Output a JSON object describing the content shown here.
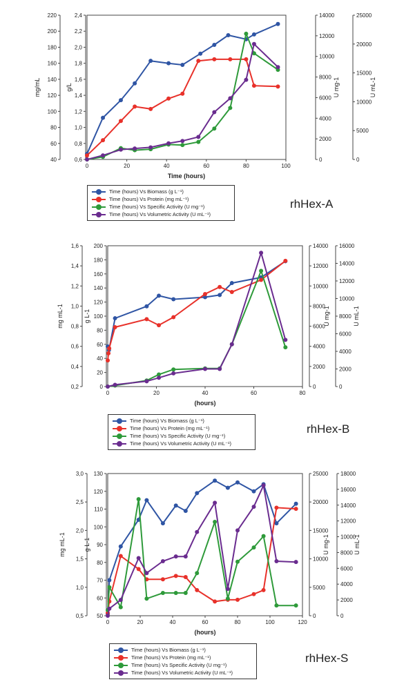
{
  "chart_data": [
    {
      "type": "line",
      "title": "",
      "panel_label": "rhHex-A",
      "xlabel": "Time (hours)",
      "xlim": [
        0,
        100
      ],
      "xticks": [
        "0",
        "20",
        "40",
        "60",
        "80",
        "100"
      ],
      "axes": [
        {
          "label": "mg/mL",
          "ticks": [
            "0,6",
            "0,8",
            "1,0",
            "1,2",
            "1,4",
            "1,6",
            "1,8",
            "2,0",
            "2,2",
            "2,4"
          ]
        },
        {
          "label": "g/L",
          "ticks": [
            "40",
            "60",
            "80",
            "100",
            "120",
            "140",
            "160",
            "180",
            "200",
            "220"
          ]
        },
        {
          "label": "U mg-1",
          "ticks": [
            "0",
            "2000",
            "4000",
            "6000",
            "8000",
            "10000",
            "12000",
            "14000"
          ]
        },
        {
          "label": "U mL-1",
          "ticks": [
            "0",
            "5000",
            "10000",
            "15000",
            "20000",
            "25000"
          ]
        }
      ],
      "series": [
        {
          "name": "Time (hours) Vs Biomass (g L⁻¹)",
          "color": "#2f55a4",
          "axis": 1,
          "x": [
            0,
            8,
            17,
            24,
            32,
            41,
            48,
            57,
            64,
            71,
            80,
            84,
            96
          ],
          "y": [
            47,
            92,
            114,
            135,
            163,
            160,
            158,
            172,
            183,
            195,
            190,
            196,
            209
          ]
        },
        {
          "name": "Time (hours) Vs Protein (mg mL⁻¹)",
          "color": "#e8312a",
          "axis": 0,
          "x": [
            0,
            8,
            17,
            24,
            32,
            41,
            48,
            56,
            64,
            72,
            80,
            84,
            96
          ],
          "y": [
            0.65,
            0.84,
            1.08,
            1.26,
            1.23,
            1.36,
            1.42,
            1.83,
            1.85,
            1.85,
            1.85,
            1.52,
            1.51
          ]
        },
        {
          "name": "Time (hours) Vs Specific Activity (U mg⁻¹)",
          "color": "#2e9a3a",
          "axis": 2,
          "x": [
            0,
            8,
            17,
            24,
            32,
            41,
            48,
            56,
            64,
            72,
            80,
            84,
            96
          ],
          "y": [
            0,
            250,
            1100,
            900,
            1000,
            1450,
            1400,
            1700,
            3000,
            5000,
            12200,
            10300,
            8700
          ]
        },
        {
          "name": "Time (hours) Vs Volumetric Activity  (U mL⁻¹)",
          "color": "#6a2c8f",
          "axis": 3,
          "x": [
            0,
            8,
            17,
            24,
            32,
            41,
            48,
            56,
            64,
            72,
            80,
            84,
            96
          ],
          "y": [
            0,
            700,
            1700,
            1900,
            2100,
            2800,
            3200,
            3900,
            8200,
            10600,
            13800,
            20000,
            16000
          ]
        }
      ],
      "legend": "below"
    },
    {
      "type": "line",
      "title": "",
      "panel_label": "rhHex-B",
      "xlabel": "(hours)",
      "xlim": [
        0,
        80
      ],
      "xticks": [
        "0",
        "20",
        "40",
        "60",
        "80"
      ],
      "axes": [
        {
          "label": "mg mL-1",
          "ticks": [
            "0,2",
            "0,4",
            "0,6",
            "0,8",
            "1,0",
            "1,2",
            "1,4",
            "1,6"
          ]
        },
        {
          "label": "g L-1",
          "ticks": [
            "0",
            "20",
            "40",
            "60",
            "80",
            "100",
            "120",
            "140",
            "160",
            "180",
            "200"
          ]
        },
        {
          "label": "U mg-1",
          "ticks": [
            "0",
            "2000",
            "4000",
            "6000",
            "8000",
            "10000",
            "12000",
            "14000"
          ]
        },
        {
          "label": "U mL-1",
          "ticks": [
            "0",
            "2000",
            "4000",
            "6000",
            "8000",
            "10000",
            "12000",
            "14000",
            "16000"
          ]
        }
      ],
      "series": [
        {
          "name": "Time (hours) Vs Biomass (g L⁻¹)",
          "color": "#2f55a4",
          "axis": 1,
          "x": [
            0,
            0.5,
            3,
            16,
            21,
            27,
            40,
            46,
            51,
            63,
            73
          ],
          "y": [
            57,
            52,
            97,
            114,
            129,
            124,
            127,
            130,
            147,
            155,
            178
          ]
        },
        {
          "name": "Time (hours) Vs Protein (mg mL⁻¹)",
          "color": "#e8312a",
          "axis": 0,
          "x": [
            0,
            0.3,
            0.6,
            3,
            16,
            21,
            27,
            40,
            46,
            51,
            63,
            73
          ],
          "y": [
            0.46,
            0.53,
            0.58,
            0.79,
            0.87,
            0.81,
            0.89,
            1.12,
            1.19,
            1.14,
            1.26,
            1.45
          ]
        },
        {
          "name": "Time (hours) Vs Specific Activity (U mg⁻¹)",
          "color": "#2e9a3a",
          "axis": 2,
          "x": [
            0,
            3,
            16,
            21,
            27,
            40,
            46,
            51,
            63,
            73
          ],
          "y": [
            0,
            100,
            600,
            1200,
            1700,
            1800,
            1800,
            4200,
            11500,
            3900
          ]
        },
        {
          "name": "Time (hours) Vs Volumetric Activity  (U mL⁻¹)",
          "color": "#6a2c8f",
          "axis": 3,
          "x": [
            0,
            3,
            16,
            21,
            27,
            40,
            46,
            51,
            63,
            73
          ],
          "y": [
            0,
            200,
            600,
            1000,
            1500,
            2000,
            2000,
            4800,
            15200,
            5300
          ]
        }
      ],
      "legend": "below"
    },
    {
      "type": "line",
      "title": "",
      "panel_label": "rhHex-S",
      "xlabel": "(hours)",
      "xlim": [
        0,
        120
      ],
      "xticks": [
        "0",
        "20",
        "40",
        "60",
        "80",
        "100",
        "120"
      ],
      "axes": [
        {
          "label": "mg mL-1",
          "ticks": [
            "0,5",
            "1,0",
            "1,5",
            "2,0",
            "2,5",
            "3,0"
          ]
        },
        {
          "label": "g L-1",
          "ticks": [
            "50",
            "60",
            "70",
            "80",
            "90",
            "100",
            "110",
            "120",
            "130"
          ]
        },
        {
          "label": "U mg-1",
          "ticks": [
            "0",
            "5000",
            "10000",
            "15000",
            "20000",
            "25000"
          ]
        },
        {
          "label": "U mL-1",
          "ticks": [
            "0",
            "2000",
            "4000",
            "6000",
            "8000",
            "10000",
            "12000",
            "14000",
            "16000",
            "18000"
          ]
        }
      ],
      "series": [
        {
          "name": "Time (hours) Vs Biomass (g L⁻¹)",
          "color": "#2f55a4",
          "axis": 1,
          "x": [
            0,
            1,
            8,
            19,
            24,
            34,
            42,
            48,
            55,
            66,
            74,
            80,
            90,
            96,
            104,
            116
          ],
          "y": [
            51,
            70,
            89,
            104,
            115,
            102,
            112,
            109,
            119,
            126,
            122,
            125,
            120,
            124,
            102,
            113
          ]
        },
        {
          "name": "Time (hours) Vs Protein (mg mL⁻¹)",
          "color": "#e8312a",
          "axis": 0,
          "x": [
            0,
            1,
            8,
            19,
            24,
            34,
            42,
            48,
            55,
            66,
            74,
            80,
            90,
            96,
            104,
            116
          ],
          "y": [
            0.55,
            0.75,
            1.55,
            1.32,
            1.14,
            1.14,
            1.2,
            1.18,
            0.95,
            0.75,
            0.78,
            0.78,
            0.88,
            0.95,
            2.4,
            2.38
          ]
        },
        {
          "name": "Time (hours) Vs Specific Activity (U mg⁻¹)",
          "color": "#2e9a3a",
          "axis": 2,
          "x": [
            0,
            1,
            8,
            19,
            24,
            34,
            42,
            48,
            55,
            66,
            74,
            80,
            90,
            96,
            104,
            116
          ],
          "y": [
            1000,
            5000,
            1500,
            20500,
            3000,
            4000,
            4000,
            4000,
            7500,
            16500,
            3000,
            9500,
            12000,
            14000,
            1800,
            1800
          ]
        },
        {
          "name": "Time (hours) Vs Volumetric Activity  (U mL⁻¹)",
          "color": "#6a2c8f",
          "axis": 3,
          "x": [
            0,
            1,
            8,
            19,
            24,
            34,
            42,
            48,
            55,
            66,
            74,
            80,
            90,
            96,
            104,
            116
          ],
          "y": [
            0,
            900,
            2000,
            7300,
            5400,
            6900,
            7500,
            7500,
            10600,
            14300,
            3400,
            10800,
            13800,
            16500,
            6900,
            6800
          ]
        }
      ],
      "legend": "below"
    }
  ]
}
